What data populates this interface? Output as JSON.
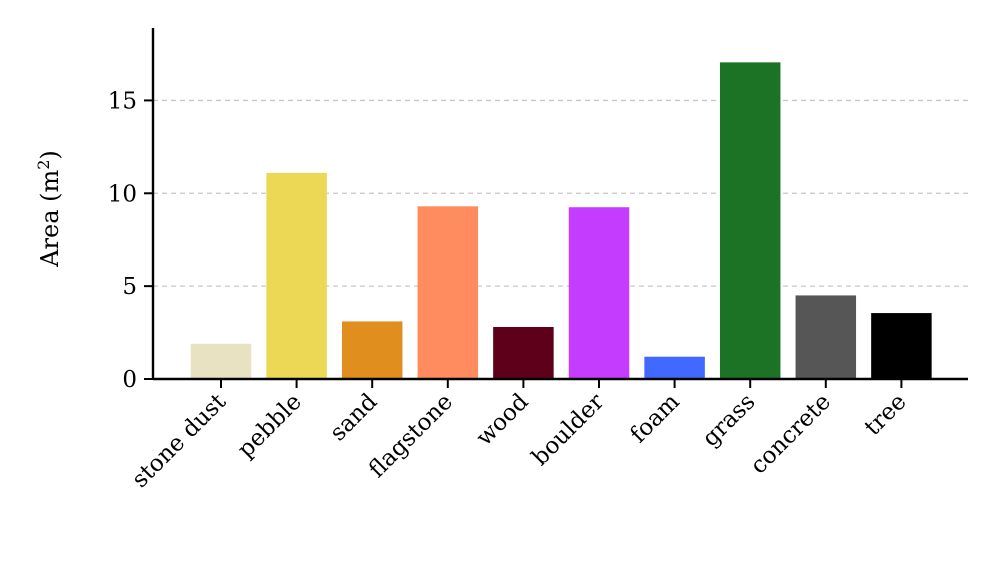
{
  "chart_data": {
    "type": "bar",
    "title": "",
    "xlabel": "",
    "ylabel": "Area (m",
    "ylabel_sup": "2",
    "ylabel_close": ")",
    "ylim": [
      0,
      18.9
    ],
    "yticks": [
      0,
      5,
      10,
      15
    ],
    "grid": "y-dashed",
    "categories": [
      "stone dust",
      "pebble",
      "sand",
      "flagstone",
      "wood",
      "boulder",
      "foam",
      "grass",
      "concrete",
      "tree"
    ],
    "values": [
      1.9,
      11.1,
      3.1,
      9.3,
      2.8,
      9.25,
      1.2,
      17.05,
      4.5,
      3.55
    ],
    "colors": [
      "#e8e2c2",
      "#ecd854",
      "#e08e1d",
      "#ff8c5e",
      "#5f001b",
      "#c43dff",
      "#4169ff",
      "#1d7325",
      "#565656",
      "#000000"
    ]
  }
}
